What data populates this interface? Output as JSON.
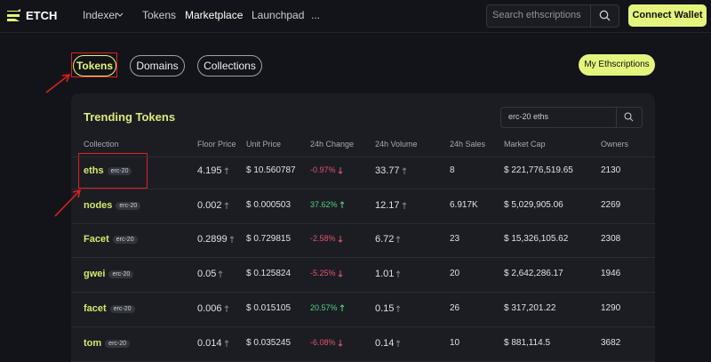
{
  "nav": {
    "logo": "ETCH",
    "links": [
      "Indexer",
      "Tokens",
      "Marketplace",
      "Launchpad",
      "..."
    ],
    "search_placeholder": "Search ethscriptions",
    "connect": "Connect Wallet"
  },
  "tabs": [
    "Tokens",
    "Domains",
    "Collections"
  ],
  "my_button": "My Ethscriptions",
  "panel": {
    "title": "Trending Tokens",
    "search_value": "erc-20 eths",
    "columns": [
      "Collection",
      "Floor Price",
      "Unit Price",
      "24h Change",
      "24h Volume",
      "24h Sales",
      "Market Cap",
      "Owners"
    ],
    "rows": [
      [
        "eths",
        "erc-20",
        "4.195",
        "$ 10.560787",
        "-0.97%",
        "33.77",
        "8",
        "$ 221,776,519.65",
        "2130"
      ],
      [
        "nodes",
        "erc-20",
        "0.002",
        "$ 0.000503",
        "37.62%",
        "12.17",
        "6.917K",
        "$ 5,029,905.06",
        "2269"
      ],
      [
        "Facet",
        "erc-20",
        "0.2899",
        "$ 0.729815",
        "-2.58%",
        "6.72",
        "23",
        "$ 15,326,105.62",
        "2308"
      ],
      [
        "gwei",
        "erc-20",
        "0.05",
        "$ 0.125824",
        "-5.25%",
        "1.01",
        "20",
        "$ 2,642,286.17",
        "1946"
      ],
      [
        "facet",
        "erc-20",
        "0.006",
        "$ 0.015105",
        "20.57%",
        "0.15",
        "26",
        "$ 317,201.22",
        "1290"
      ],
      [
        "tom",
        "erc-20",
        "0.014",
        "$ 0.035245",
        "-6.08%",
        "0.14",
        "10",
        "$ 881,114.5",
        "3682"
      ]
    ]
  }
}
